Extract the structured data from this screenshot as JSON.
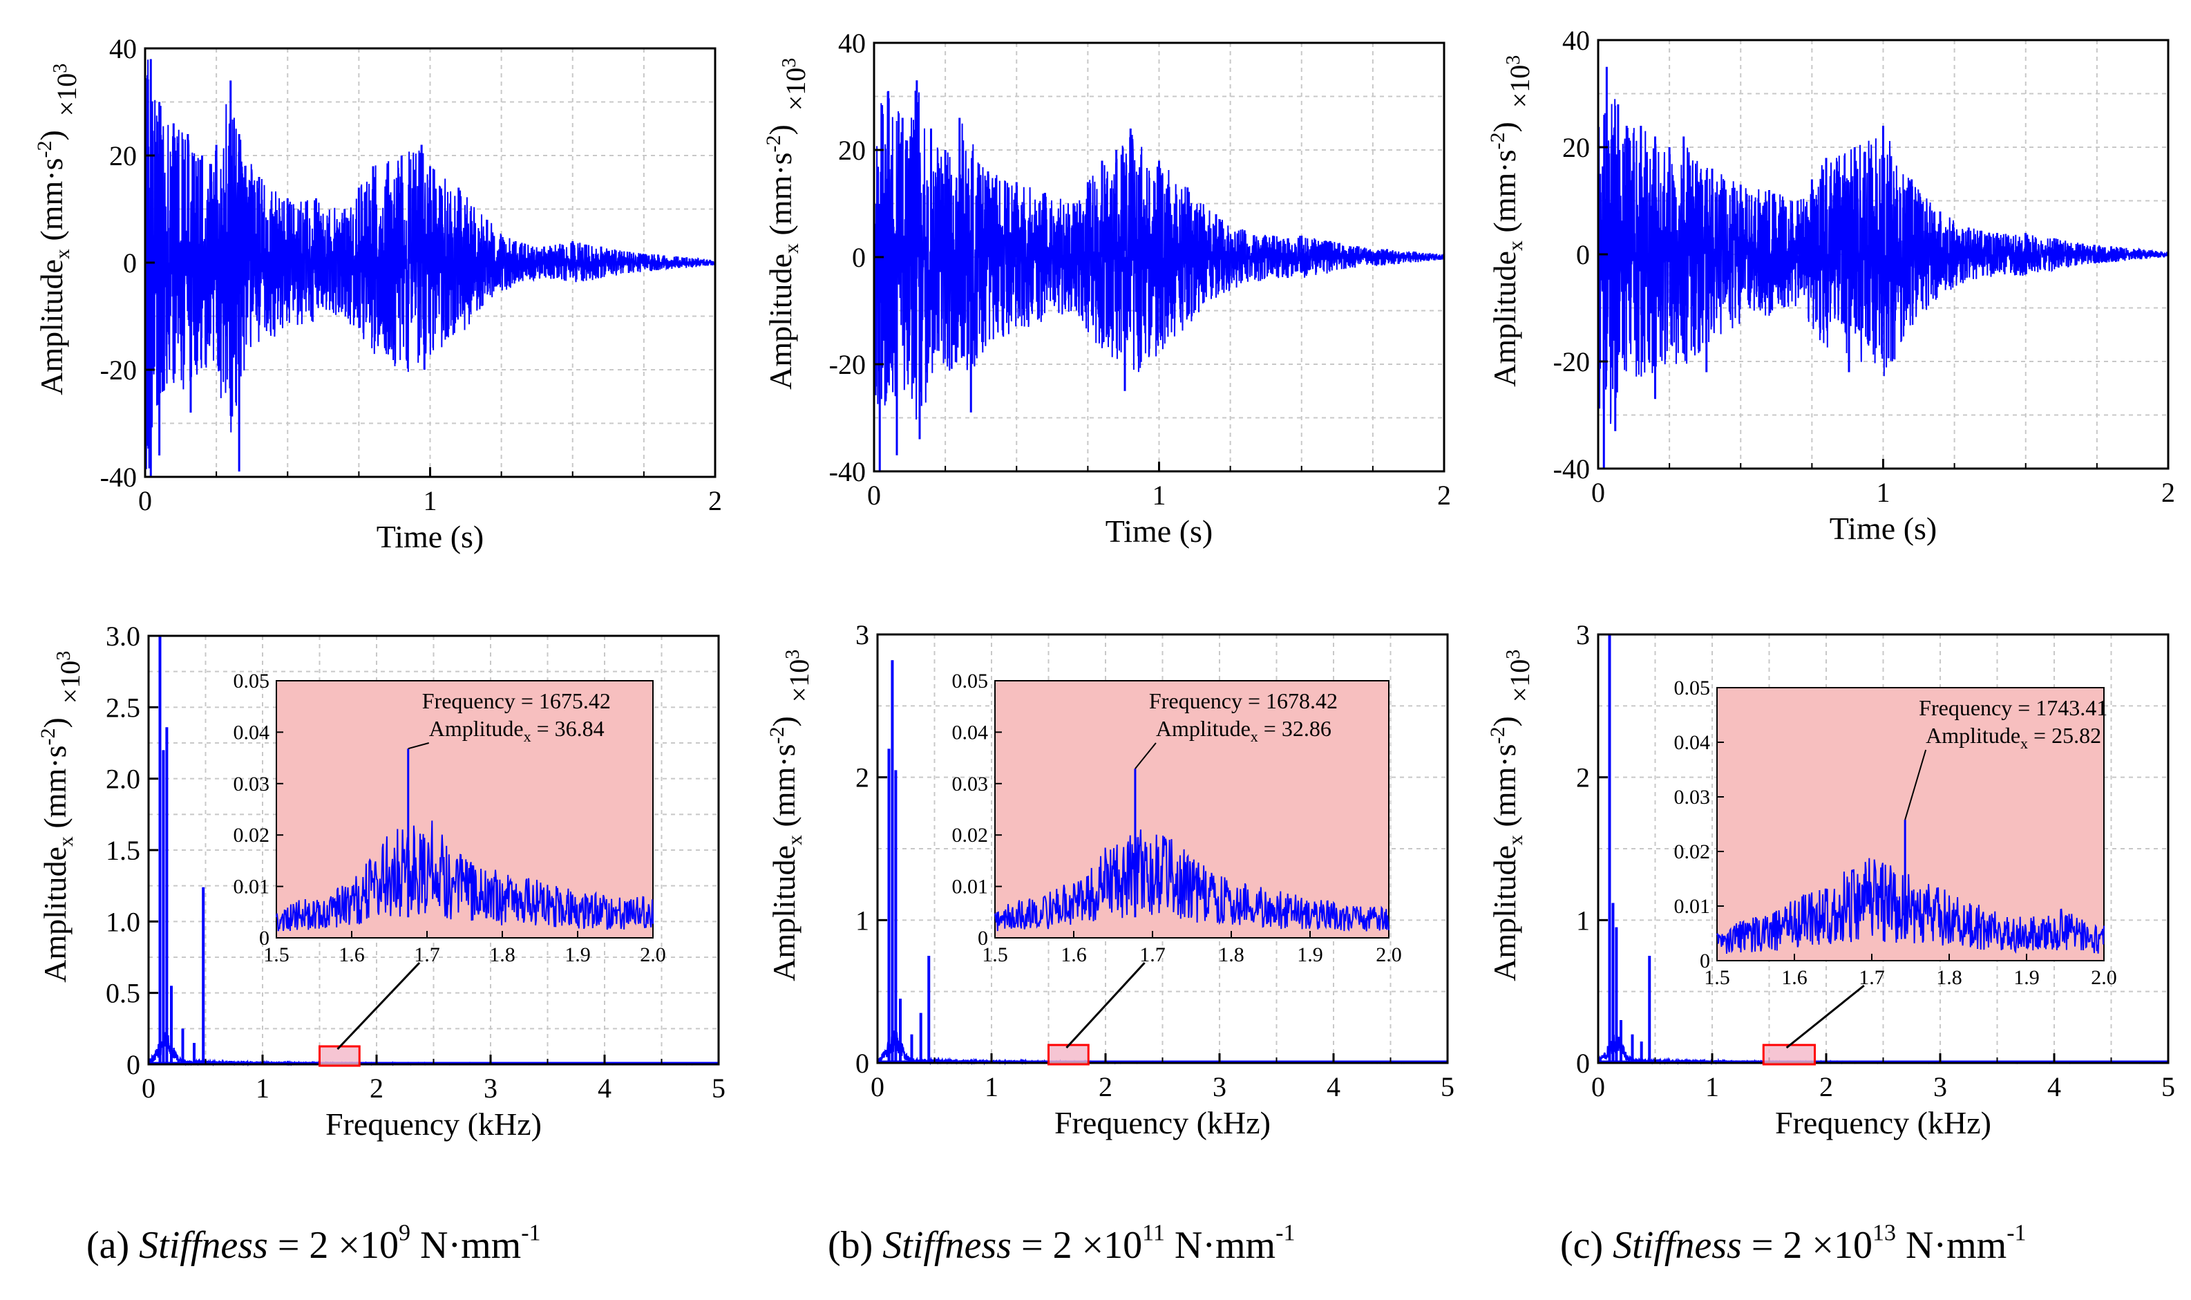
{
  "chart_data": [
    {
      "type": "line",
      "panel": "a-time",
      "title": "",
      "xlabel": "Time (s)",
      "ylabel_main": "Amplitude",
      "ylabel_sub": "x",
      "ylabel_unit": "(mm·s",
      "ylabel_unit_sup": "-2",
      "ylabel_unit_close": ")",
      "multiplier": "×10",
      "multiplier_sup": "3",
      "xlim": [
        0,
        2
      ],
      "ylim": [
        -40,
        40
      ],
      "xticks": [
        "0",
        "1",
        "2"
      ],
      "yticks": [
        "-40",
        "-20",
        "0",
        "20",
        "40"
      ],
      "series": [
        {
          "name": "Amplitude_x",
          "color": "#0000ff",
          "envelope": [
            [
              0,
              40
            ],
            [
              0.02,
              38
            ],
            [
              0.05,
              30
            ],
            [
              0.1,
              26
            ],
            [
              0.15,
              24
            ],
            [
              0.2,
              20
            ],
            [
              0.25,
              22
            ],
            [
              0.3,
              34
            ],
            [
              0.33,
              24
            ],
            [
              0.4,
              16
            ],
            [
              0.5,
              12
            ],
            [
              0.6,
              12
            ],
            [
              0.7,
              10
            ],
            [
              0.75,
              14
            ],
            [
              0.8,
              18
            ],
            [
              0.9,
              20
            ],
            [
              0.97,
              22
            ],
            [
              1.0,
              18
            ],
            [
              1.1,
              14
            ],
            [
              1.2,
              8
            ],
            [
              1.3,
              4
            ],
            [
              1.4,
              3
            ],
            [
              1.5,
              4
            ],
            [
              1.6,
              3
            ],
            [
              1.7,
              2
            ],
            [
              1.8,
              1.5
            ],
            [
              1.9,
              1
            ],
            [
              2.0,
              0.5
            ]
          ],
          "neg_peaks": [
            [
              0.02,
              -40
            ],
            [
              0.05,
              -36
            ],
            [
              0.33,
              -39
            ],
            [
              0.16,
              -28
            ],
            [
              0.98,
              -20
            ]
          ]
        }
      ]
    },
    {
      "type": "line",
      "panel": "b-time",
      "title": "",
      "xlabel": "Time (s)",
      "ylabel_main": "Amplitude",
      "ylabel_sub": "x",
      "ylabel_unit": "(mm·s",
      "ylabel_unit_sup": "-2",
      "ylabel_unit_close": ")",
      "multiplier": "×10",
      "multiplier_sup": "3",
      "xlim": [
        0,
        2
      ],
      "ylim": [
        -40,
        40
      ],
      "xticks": [
        "0",
        "1",
        "2"
      ],
      "yticks": [
        "-40",
        "-20",
        "0",
        "20",
        "40"
      ],
      "series": [
        {
          "name": "Amplitude_x",
          "color": "#0000ff",
          "envelope": [
            [
              0,
              30
            ],
            [
              0.05,
              31
            ],
            [
              0.1,
              26
            ],
            [
              0.15,
              33
            ],
            [
              0.2,
              24
            ],
            [
              0.25,
              20
            ],
            [
              0.3,
              26
            ],
            [
              0.4,
              16
            ],
            [
              0.5,
              14
            ],
            [
              0.6,
              12
            ],
            [
              0.7,
              10
            ],
            [
              0.75,
              14
            ],
            [
              0.8,
              18
            ],
            [
              0.85,
              20
            ],
            [
              0.9,
              24
            ],
            [
              1.0,
              18
            ],
            [
              1.1,
              13
            ],
            [
              1.2,
              8
            ],
            [
              1.3,
              5
            ],
            [
              1.4,
              4
            ],
            [
              1.5,
              4
            ],
            [
              1.6,
              3
            ],
            [
              1.7,
              2
            ],
            [
              1.8,
              1.5
            ],
            [
              1.9,
              1
            ],
            [
              2.0,
              0.5
            ]
          ],
          "neg_peaks": [
            [
              0.02,
              -40
            ],
            [
              0.08,
              -37
            ],
            [
              0.16,
              -34
            ],
            [
              0.34,
              -29
            ],
            [
              0.88,
              -25
            ]
          ]
        }
      ]
    },
    {
      "type": "line",
      "panel": "c-time",
      "title": "",
      "xlabel": "Time (s)",
      "ylabel_main": "Amplitude",
      "ylabel_sub": "x",
      "ylabel_unit": "(mm·s",
      "ylabel_unit_sup": "-2",
      "ylabel_unit_close": ")",
      "multiplier": "×10",
      "multiplier_sup": "3",
      "xlim": [
        0,
        2
      ],
      "ylim": [
        -40,
        40
      ],
      "xticks": [
        "0",
        "1",
        "2"
      ],
      "yticks": [
        "-40",
        "-20",
        "0",
        "20",
        "40"
      ],
      "series": [
        {
          "name": "Amplitude_x",
          "color": "#0000ff",
          "envelope": [
            [
              0,
              30
            ],
            [
              0.03,
              35
            ],
            [
              0.07,
              28
            ],
            [
              0.1,
              24
            ],
            [
              0.15,
              24
            ],
            [
              0.2,
              22
            ],
            [
              0.25,
              20
            ],
            [
              0.3,
              22
            ],
            [
              0.4,
              16
            ],
            [
              0.5,
              13
            ],
            [
              0.6,
              12
            ],
            [
              0.7,
              10
            ],
            [
              0.75,
              14
            ],
            [
              0.8,
              18
            ],
            [
              0.9,
              20
            ],
            [
              1.0,
              24
            ],
            [
              1.1,
              14
            ],
            [
              1.2,
              8
            ],
            [
              1.3,
              5
            ],
            [
              1.4,
              4
            ],
            [
              1.5,
              4
            ],
            [
              1.6,
              3
            ],
            [
              1.7,
              2
            ],
            [
              1.8,
              1.5
            ],
            [
              1.9,
              1
            ],
            [
              2.0,
              0.5
            ]
          ],
          "neg_peaks": [
            [
              0.02,
              -40
            ],
            [
              0.06,
              -33
            ],
            [
              0.2,
              -27
            ],
            [
              0.38,
              -22
            ],
            [
              0.88,
              -22
            ]
          ]
        }
      ]
    },
    {
      "type": "line",
      "panel": "a-freq",
      "title": "",
      "xlabel": "Frequency (kHz)",
      "ylabel_main": "Amplitude",
      "ylabel_sub": "x",
      "ylabel_unit": "(mm·s",
      "ylabel_unit_sup": "-2",
      "ylabel_unit_close": ")",
      "multiplier": "×10",
      "multiplier_sup": "3",
      "xlim": [
        0,
        5
      ],
      "ylim": [
        0,
        3
      ],
      "xticks": [
        "0",
        "1",
        "2",
        "3",
        "4",
        "5"
      ],
      "yticks": [
        "0",
        "0.5",
        "1.0",
        "1.5",
        "2.0",
        "2.5",
        "3.0"
      ],
      "series": [
        {
          "name": "Spectrum",
          "color": "#0000ff",
          "peaks": [
            [
              0.1,
              3.0
            ],
            [
              0.13,
              2.2
            ],
            [
              0.16,
              2.36
            ],
            [
              0.2,
              0.55
            ],
            [
              0.3,
              0.25
            ],
            [
              0.4,
              0.15
            ],
            [
              0.48,
              1.24
            ]
          ]
        }
      ],
      "inset": {
        "xlim": [
          1.5,
          2.0
        ],
        "ylim": [
          0,
          0.05
        ],
        "xticks": [
          "1.5",
          "1.6",
          "1.7",
          "1.8",
          "1.9",
          "2.0"
        ],
        "yticks": [
          "0",
          "0.01",
          "0.02",
          "0.03",
          "0.04",
          "0.05"
        ],
        "annotation_line1": "Frequency = 1675.42",
        "annotation_line2_main": "Amplitude",
        "annotation_line2_sub": "x",
        "annotation_line2_value": " = 36.84",
        "peak": [
          1.675,
          0.0368
        ],
        "base_level": 0.006,
        "hump": [
          [
            1.5,
            0.004
          ],
          [
            1.55,
            0.005
          ],
          [
            1.6,
            0.007
          ],
          [
            1.65,
            0.013
          ],
          [
            1.7,
            0.015
          ],
          [
            1.75,
            0.01
          ],
          [
            1.8,
            0.008
          ],
          [
            1.85,
            0.007
          ],
          [
            1.9,
            0.006
          ],
          [
            1.95,
            0.005
          ],
          [
            2.0,
            0.005
          ]
        ],
        "peak_label": "Frequency = 1675.42 / Amplitude_x = 36.84"
      },
      "zoom_box_range": [
        1.5,
        1.85
      ]
    },
    {
      "type": "line",
      "panel": "b-freq",
      "title": "",
      "xlabel": "Frequency (kHz)",
      "ylabel_main": "Amplitude",
      "ylabel_sub": "x",
      "ylabel_unit": "(mm·s",
      "ylabel_unit_sup": "-2",
      "ylabel_unit_close": ")",
      "multiplier": "×10",
      "multiplier_sup": "3",
      "xlim": [
        0,
        5
      ],
      "ylim": [
        0,
        3
      ],
      "xticks": [
        "0",
        "1",
        "2",
        "3",
        "4",
        "5"
      ],
      "yticks": [
        "0",
        "1",
        "2",
        "3"
      ],
      "series": [
        {
          "name": "Spectrum",
          "color": "#0000ff",
          "peaks": [
            [
              0.1,
              2.2
            ],
            [
              0.13,
              2.82
            ],
            [
              0.16,
              2.05
            ],
            [
              0.2,
              0.45
            ],
            [
              0.3,
              0.2
            ],
            [
              0.38,
              0.35
            ],
            [
              0.45,
              0.75
            ]
          ]
        }
      ],
      "inset": {
        "xlim": [
          1.5,
          2.0
        ],
        "ylim": [
          0,
          0.05
        ],
        "xticks": [
          "1.5",
          "1.6",
          "1.7",
          "1.8",
          "1.9",
          "2.0"
        ],
        "yticks": [
          "0",
          "0.01",
          "0.02",
          "0.03",
          "0.04",
          "0.05"
        ],
        "annotation_line1": "Frequency = 1678.42",
        "annotation_line2_main": "Amplitude",
        "annotation_line2_sub": "x",
        "annotation_line2_value": " = 32.86",
        "peak": [
          1.678,
          0.0329
        ],
        "base_level": 0.006,
        "hump": [
          [
            1.5,
            0.004
          ],
          [
            1.55,
            0.005
          ],
          [
            1.6,
            0.007
          ],
          [
            1.65,
            0.012
          ],
          [
            1.7,
            0.014
          ],
          [
            1.75,
            0.01
          ],
          [
            1.8,
            0.007
          ],
          [
            1.85,
            0.006
          ],
          [
            1.9,
            0.005
          ],
          [
            1.95,
            0.004
          ],
          [
            2.0,
            0.004
          ]
        ],
        "peak_label": "Frequency = 1678.42 / Amplitude_x = 32.86"
      },
      "zoom_box_range": [
        1.5,
        1.85
      ]
    },
    {
      "type": "line",
      "panel": "c-freq",
      "title": "",
      "xlabel": "Frequency (kHz)",
      "ylabel_main": "Amplitude",
      "ylabel_sub": "x",
      "ylabel_unit": "(mm·s",
      "ylabel_unit_sup": "-2",
      "ylabel_unit_close": ")",
      "multiplier": "×10",
      "multiplier_sup": "3",
      "xlim": [
        0,
        5
      ],
      "ylim": [
        0,
        3
      ],
      "xticks": [
        "0",
        "1",
        "2",
        "3",
        "4",
        "5"
      ],
      "yticks": [
        "0",
        "1",
        "2",
        "3"
      ],
      "series": [
        {
          "name": "Spectrum",
          "color": "#0000ff",
          "peaks": [
            [
              0.1,
              3.0
            ],
            [
              0.13,
              1.12
            ],
            [
              0.16,
              0.95
            ],
            [
              0.2,
              0.3
            ],
            [
              0.3,
              0.2
            ],
            [
              0.38,
              0.15
            ],
            [
              0.45,
              0.75
            ]
          ]
        }
      ],
      "inset": {
        "xlim": [
          1.5,
          2.0
        ],
        "ylim": [
          0,
          0.05
        ],
        "xticks": [
          "1.5",
          "1.6",
          "1.7",
          "1.8",
          "1.9",
          "2.0"
        ],
        "yticks": [
          "0",
          "0.01",
          "0.02",
          "0.03",
          "0.04",
          "0.05"
        ],
        "annotation_line1": "Frequency = 1743.41",
        "annotation_line2_main": "Amplitude",
        "annotation_line2_sub": "x",
        "annotation_line2_value": " = 25.82",
        "peak": [
          1.743,
          0.0258
        ],
        "base_level": 0.005,
        "hump": [
          [
            1.5,
            0.004
          ],
          [
            1.55,
            0.005
          ],
          [
            1.6,
            0.007
          ],
          [
            1.65,
            0.01
          ],
          [
            1.7,
            0.012
          ],
          [
            1.75,
            0.01
          ],
          [
            1.8,
            0.008
          ],
          [
            1.85,
            0.006
          ],
          [
            1.9,
            0.005
          ],
          [
            1.95,
            0.006
          ],
          [
            2.0,
            0.004
          ]
        ],
        "peak_label": "Frequency = 1743.41 / Amplitude_x = 25.82"
      },
      "zoom_box_range": [
        1.45,
        1.9
      ]
    }
  ],
  "captions": [
    {
      "prefix": "(a) ",
      "italic": "Stiffness",
      "mid": " = 2 ×10",
      "exp": "9",
      "unit": " N·mm",
      "unit_exp": "-1"
    },
    {
      "prefix": "(b) ",
      "italic": "Stiffness",
      "mid": " = 2 ×10",
      "exp": "11",
      "unit": " N·mm",
      "unit_exp": "-1"
    },
    {
      "prefix": "(c) ",
      "italic": "Stiffness",
      "mid": " = 2 ×10",
      "exp": "13",
      "unit": " N·mm",
      "unit_exp": "-1"
    }
  ],
  "colors": {
    "series": "#0000ff",
    "inset_bg": "#f7bfbf",
    "zoom_box_stroke": "#ff0000",
    "zoom_box_fill": "#f4b6c8",
    "grid": "#c8c8c8"
  }
}
